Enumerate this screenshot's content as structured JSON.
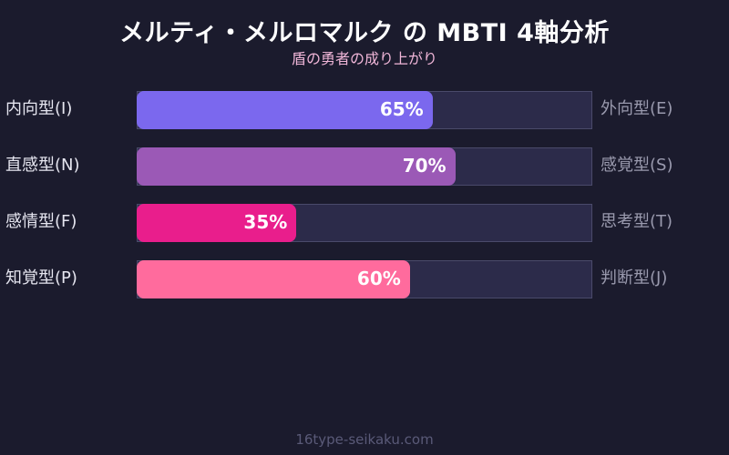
{
  "header": {
    "title": "メルティ・メルロマルク の MBTI 4軸分析",
    "subtitle": "盾の勇者の成り上がり"
  },
  "footer": {
    "text": "16type-seikaku.com"
  },
  "colors": {
    "background": "#1b1b2d",
    "track": "#2c2b4a",
    "bar_IE": "#7b68ee",
    "bar_NS": "#9b59b6",
    "bar_FT": "#e91e8c",
    "bar_PJ": "#ff6b9d"
  },
  "rows": [
    {
      "left": "内向型(I)",
      "right": "外向型(E)",
      "value": 65,
      "label": "65%",
      "color": "#7b68ee"
    },
    {
      "left": "直感型(N)",
      "right": "感覚型(S)",
      "value": 70,
      "label": "70%",
      "color": "#9b59b6"
    },
    {
      "left": "感情型(F)",
      "right": "思考型(T)",
      "value": 35,
      "label": "35%",
      "color": "#e91e8c"
    },
    {
      "left": "知覚型(P)",
      "right": "判断型(J)",
      "value": 60,
      "label": "60%",
      "color": "#ff6b9d"
    }
  ],
  "chart_data": {
    "type": "bar",
    "orientation": "horizontal",
    "title": "メルティ・メルロマルク の MBTI 4軸分析",
    "subtitle": "盾の勇者の成り上がり",
    "categories": [
      "内向型(I) / 外向型(E)",
      "直感型(N) / 感覚型(S)",
      "感情型(F) / 思考型(T)",
      "知覚型(P) / 判断型(J)"
    ],
    "left_labels": [
      "内向型(I)",
      "直感型(N)",
      "感情型(F)",
      "知覚型(P)"
    ],
    "right_labels": [
      "外向型(E)",
      "感覚型(S)",
      "思考型(T)",
      "判断型(J)"
    ],
    "values": [
      65,
      70,
      35,
      60
    ],
    "value_labels": [
      "65%",
      "70%",
      "35%",
      "60%"
    ],
    "xlim": [
      0,
      100
    ],
    "grid": false,
    "legend": null,
    "annotation": "16type-seikaku.com"
  }
}
